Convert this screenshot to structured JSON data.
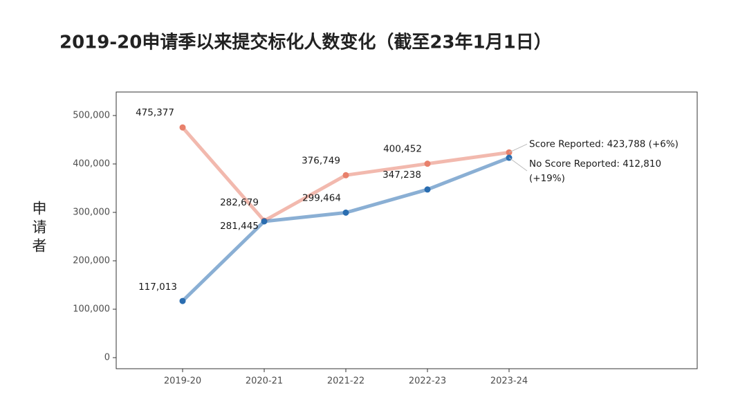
{
  "chart_data": {
    "type": "line",
    "title": "2019-20申请季以来提交标化人数变化（截至23年1月1日）",
    "y_label": "申请者",
    "categories": [
      "2019-20",
      "2020-21",
      "2021-22",
      "2022-23",
      "2023-24"
    ],
    "series": [
      {
        "color": "#e8806b",
        "values": [
          475377,
          282679,
          376749,
          400452,
          423788
        ],
        "value_labels": [
          "475,377",
          "282,679",
          "376,749",
          "400,452",
          null
        ],
        "label": [
          "Score Reported: 423,788 (+6%)"
        ]
      },
      {
        "color": "#2a6db0",
        "values": [
          117013,
          281445,
          299464,
          347238,
          412810
        ],
        "value_labels": [
          "117,013",
          "281,445",
          "299,464",
          "347,238",
          null
        ],
        "label": [
          "No Score Reported: 412,810",
          "(+19%)"
        ]
      }
    ],
    "ylim": [
      -22857,
      548571
    ],
    "yticks": [
      0,
      {
        "value": 100000,
        "label": "100,000"
      },
      {
        "value": 200000,
        "label": "200,000"
      },
      {
        "value": 300000,
        "label": "300,000"
      },
      {
        "value": 400000,
        "label": "400,000"
      },
      {
        "value": 500000,
        "label": "500,000"
      }
    ],
    "grid": true
  }
}
